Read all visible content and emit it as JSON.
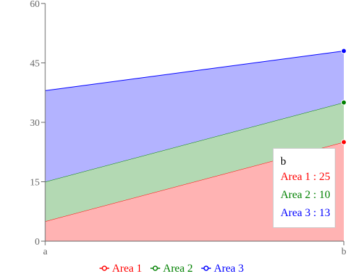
{
  "chart_data": {
    "type": "area",
    "stacked": true,
    "categories": [
      "a",
      "b"
    ],
    "series": [
      {
        "name": "Area 1",
        "values": [
          5,
          25
        ],
        "stroke": "#ff0000",
        "fill": "#ffb3b3"
      },
      {
        "name": "Area 2",
        "values": [
          10,
          10
        ],
        "stroke": "#008000",
        "fill": "#b3d9b3"
      },
      {
        "name": "Area 3",
        "values": [
          23,
          13
        ],
        "stroke": "#0000ff",
        "fill": "#b3b3ff"
      }
    ],
    "ylim": [
      0,
      60
    ],
    "yticks": [
      "0",
      "15",
      "30",
      "45",
      "60"
    ],
    "grid": false,
    "legend_position": "bottom-center",
    "tooltip": {
      "title": "b",
      "items": [
        {
          "label": "Area 1 : 25",
          "color": "#ff0000"
        },
        {
          "label": "Area 2 : 10",
          "color": "#008000"
        },
        {
          "label": "Area 3 : 13",
          "color": "#0000ff"
        }
      ]
    }
  }
}
